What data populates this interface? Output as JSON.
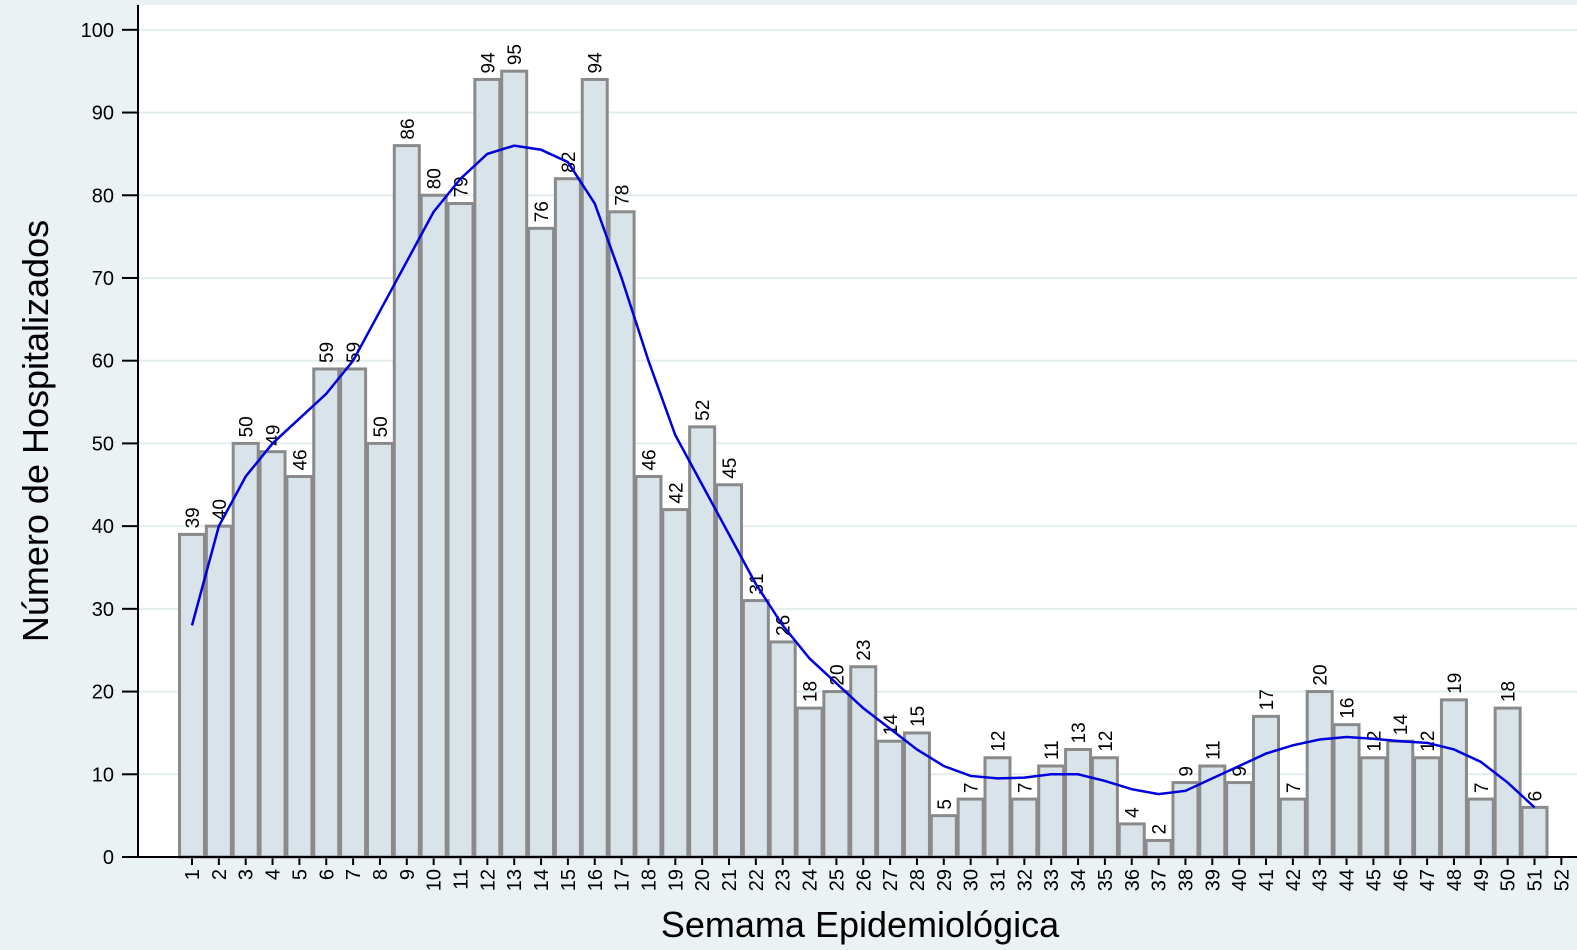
{
  "chart_data": {
    "type": "bar",
    "xlabel": "Semama Epidemiológica",
    "ylabel": "Número de Hospitalizados",
    "categories": [
      "1",
      "2",
      "3",
      "4",
      "5",
      "6",
      "7",
      "8",
      "9",
      "10",
      "11",
      "12",
      "13",
      "14",
      "15",
      "16",
      "17",
      "18",
      "19",
      "20",
      "21",
      "22",
      "23",
      "24",
      "25",
      "26",
      "27",
      "28",
      "29",
      "30",
      "31",
      "32",
      "33",
      "34",
      "35",
      "36",
      "37",
      "38",
      "39",
      "40",
      "41",
      "42",
      "43",
      "44",
      "45",
      "46",
      "47",
      "48",
      "49",
      "50",
      "51",
      "52"
    ],
    "values": [
      39,
      40,
      50,
      49,
      46,
      59,
      59,
      50,
      86,
      80,
      79,
      94,
      95,
      76,
      82,
      94,
      78,
      46,
      42,
      52,
      45,
      31,
      26,
      18,
      20,
      23,
      14,
      15,
      5,
      7,
      12,
      7,
      11,
      13,
      12,
      4,
      2,
      9,
      11,
      9,
      17,
      7,
      20,
      16,
      12,
      14,
      12,
      19,
      7,
      18,
      6,
      null
    ],
    "color": "#d9e3ea",
    "edge_color": "#8a8a8a",
    "trend": {
      "color": "#0000dd",
      "values": [
        28,
        40,
        46,
        50,
        53,
        56,
        60,
        66,
        72,
        78,
        82,
        85,
        86,
        85.5,
        84,
        79,
        70,
        60,
        51,
        45,
        39,
        33,
        28,
        24,
        21,
        18,
        15.5,
        13,
        11,
        9.8,
        9.5,
        9.6,
        10,
        10,
        9.2,
        8.2,
        7.6,
        8,
        9.5,
        11,
        12.5,
        13.5,
        14.2,
        14.5,
        14.3,
        14,
        13.8,
        13,
        11.5,
        9,
        6,
        null
      ]
    },
    "ylim": [
      0,
      103
    ],
    "yticks": [
      0,
      10,
      20,
      30,
      40,
      50,
      60,
      70,
      80,
      90,
      100
    ],
    "grid": true
  }
}
